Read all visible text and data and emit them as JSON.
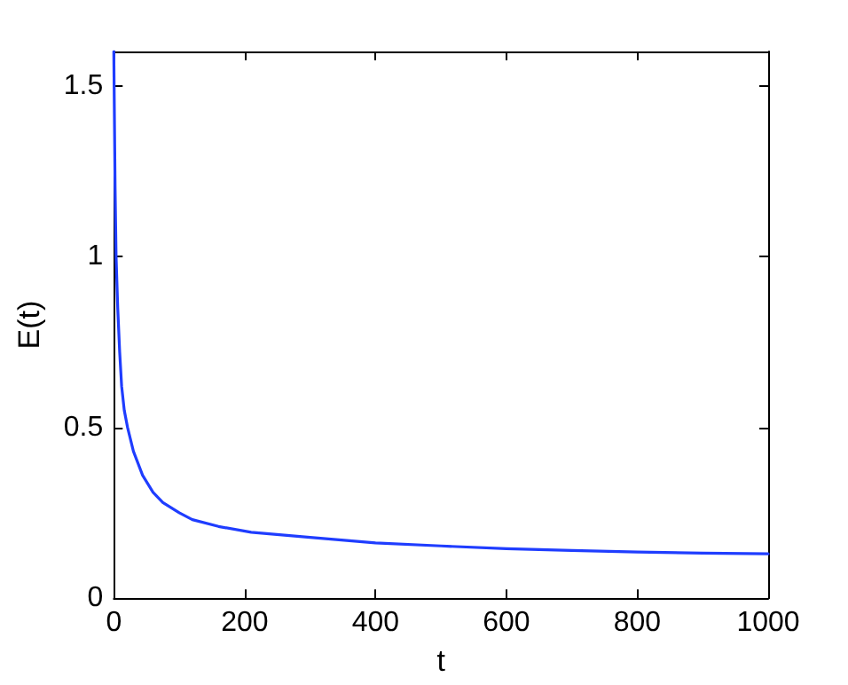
{
  "chart_data": {
    "type": "line",
    "xlabel": "t",
    "ylabel": "E(t)",
    "x": [
      0,
      2,
      3.5,
      6,
      9,
      12,
      16,
      21,
      30,
      44,
      60,
      75,
      100,
      120,
      160,
      210,
      300,
      400,
      500,
      600,
      700,
      800,
      900,
      1000
    ],
    "series": [
      {
        "color": "#1f3dff",
        "values": [
          1.6,
          1.2,
          1.0,
          0.85,
          0.72,
          0.62,
          0.55,
          0.5,
          0.43,
          0.36,
          0.31,
          0.28,
          0.25,
          0.23,
          0.21,
          0.193,
          0.178,
          0.162,
          0.153,
          0.145,
          0.14,
          0.135,
          0.132,
          0.13
        ]
      }
    ],
    "xlim": [
      0,
      1000
    ],
    "xticks": [
      0,
      200,
      400,
      600,
      800,
      1000
    ],
    "ylim": [
      0,
      1.6
    ],
    "yticks": [
      0,
      0.5,
      1,
      1.5
    ],
    "grid": false,
    "marker": "none",
    "line_style": "solid"
  }
}
